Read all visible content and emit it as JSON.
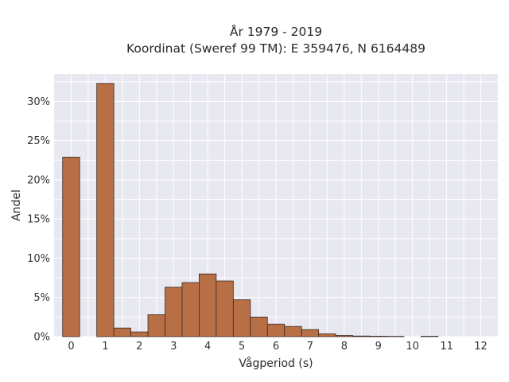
{
  "chart_data": {
    "type": "bar",
    "title_line1": "År 1979 - 2019",
    "title_line2": "Koordinat (Sweref 99 TM): E 359476, N 6164489",
    "xlabel": "Vågperiod (s)",
    "ylabel": "Andel",
    "x_ticks": [
      "0",
      "1",
      "2",
      "3",
      "4",
      "5",
      "6",
      "7",
      "8",
      "9",
      "10",
      "11",
      "12"
    ],
    "y_ticks": [
      "0%",
      "5%",
      "10%",
      "15%",
      "20%",
      "25%",
      "30%"
    ],
    "xlim": [
      -0.5,
      12.5
    ],
    "ylim": [
      0,
      33.5
    ],
    "bin_width": 0.5,
    "bins": [
      {
        "x": 0.0,
        "value": 22.9
      },
      {
        "x": 1.0,
        "value": 32.3
      },
      {
        "x": 1.5,
        "value": 1.1
      },
      {
        "x": 2.0,
        "value": 0.6
      },
      {
        "x": 2.5,
        "value": 2.8
      },
      {
        "x": 3.0,
        "value": 6.3
      },
      {
        "x": 3.5,
        "value": 6.9
      },
      {
        "x": 4.0,
        "value": 8.0
      },
      {
        "x": 4.5,
        "value": 7.1
      },
      {
        "x": 5.0,
        "value": 4.7
      },
      {
        "x": 5.5,
        "value": 2.5
      },
      {
        "x": 6.0,
        "value": 1.6
      },
      {
        "x": 6.5,
        "value": 1.3
      },
      {
        "x": 7.0,
        "value": 0.9
      },
      {
        "x": 7.5,
        "value": 0.35
      },
      {
        "x": 8.0,
        "value": 0.15
      },
      {
        "x": 8.5,
        "value": 0.08
      },
      {
        "x": 9.0,
        "value": 0.06
      },
      {
        "x": 9.5,
        "value": 0.04
      },
      {
        "x": 10.5,
        "value": 0.05
      }
    ],
    "grid": true,
    "colors": {
      "bar_fill": "#b96f45",
      "bar_edge": "#3a2a22",
      "plot_background": "#e8e8f0",
      "grid": "#ffffff"
    }
  }
}
